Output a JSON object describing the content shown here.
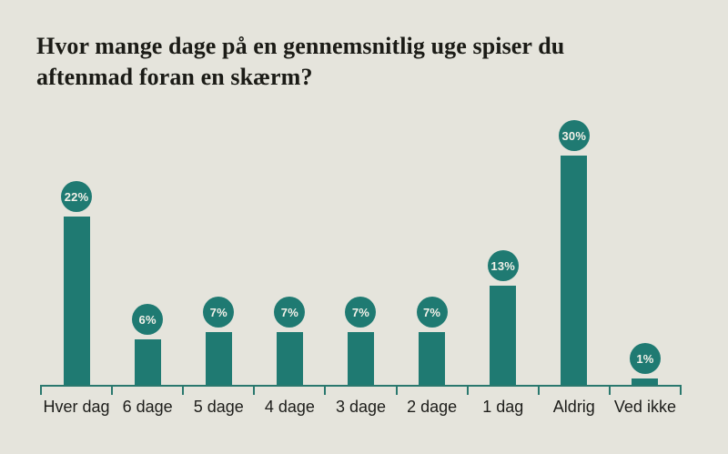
{
  "title_lines": [
    "Hvor mange dage på en gennemsnitlig uge spiser du",
    "aftenmad foran en skærm?"
  ],
  "chart_data": {
    "type": "bar",
    "title": "Hvor mange dage på en gennemsnitlig uge spiser du aftenmad foran en skærm?",
    "categories": [
      "Hver dag",
      "6 dage",
      "5 dage",
      "4 dage",
      "3 dage",
      "2 dage",
      "1 dag",
      "Aldrig",
      "Ved ikke"
    ],
    "values": [
      22,
      6,
      7,
      7,
      7,
      7,
      13,
      30,
      1
    ],
    "value_labels": [
      "22%",
      "6%",
      "7%",
      "7%",
      "7%",
      "7%",
      "13%",
      "30%",
      "1%"
    ],
    "unit": "%",
    "xlabel": "",
    "ylabel": "",
    "ylim": [
      0,
      33
    ],
    "grid": false,
    "legend": null,
    "annotations": "percent value shown in a filled circle above each bar"
  },
  "colors": {
    "background": "#e5e4dc",
    "bar": "#1f7a72",
    "axis": "#2a786e",
    "title_text": "#1b1b16",
    "bubble_text": "#f3f1e9"
  }
}
